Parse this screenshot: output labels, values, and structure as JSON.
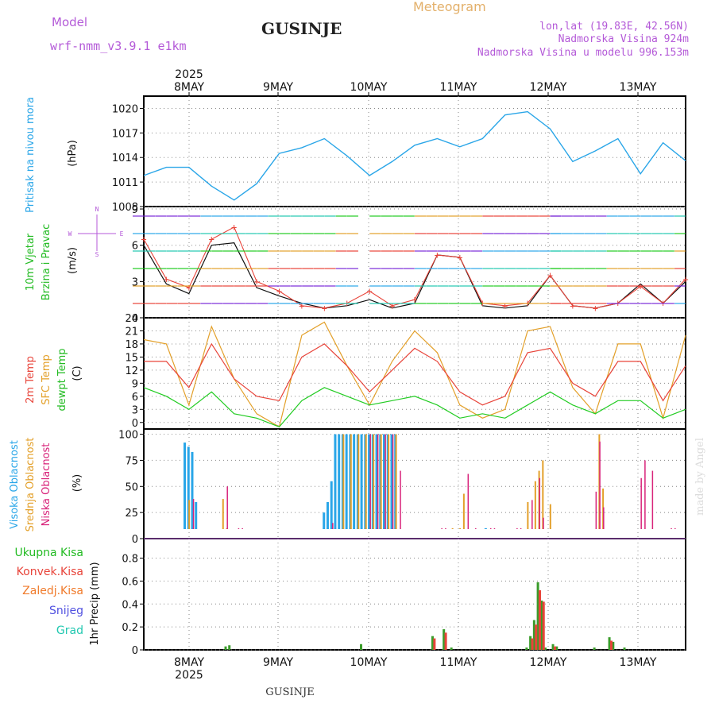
{
  "header": {
    "model_label": "Model",
    "model_name": "wrf-nmm_v3.9.1 e1km",
    "station": "GUSINJE",
    "app_title": "Meteogram",
    "coords": "lon,lat (19.83E, 42.56N)",
    "elevation": "Nadmorska Visina 924m",
    "model_elevation": "Nadmorska Visina u modelu 996.153m"
  },
  "footer": {
    "station": "GUSINJE"
  },
  "watermark": "made by Angel",
  "colors": {
    "pressure": "#2aa6e8",
    "t2m": "#e8443a",
    "tsfc": "#e3a02a",
    "dewpt": "#22cc22",
    "high_cloud": "#2aa6e8",
    "mid_cloud": "#e3a02a",
    "low_cloud": "#d8237a",
    "total_rain": "#3a9c2a",
    "conv_rain": "#e8443a",
    "frozen_rain": "#f07a2a",
    "snow": "#5050e0",
    "hail": "#22c8b0",
    "purple_text": "#b45ad8",
    "grid": "#888888"
  },
  "chart_data": [
    {
      "type": "line",
      "panel": "pressure",
      "ylabel_left": "Pritisak na nivou mora",
      "unit": "(hPa)",
      "top_year": "2025",
      "top_dates": [
        "8MAY",
        "9MAY",
        "10MAY",
        "11MAY",
        "12MAY",
        "13MAY"
      ],
      "ylim": [
        1008,
        1021.5
      ],
      "yticks": [
        "1008",
        "1011",
        "1014",
        "1017",
        "1020"
      ],
      "x_hours": [
        0,
        6,
        12,
        18,
        24,
        30,
        36,
        42,
        48,
        54,
        60,
        66,
        72,
        78,
        84,
        90,
        96,
        102,
        108,
        114,
        120,
        126,
        132,
        138,
        144
      ],
      "series": [
        {
          "values": [
            1011.8,
            1012.8,
            1012.8,
            1010.5,
            1008.8,
            1010.8,
            1014.5,
            1015.2,
            1016.3,
            1014.2,
            1011.8,
            1013.5,
            1015.5,
            1016.3,
            1015.3,
            1016.3,
            1019.2,
            1019.6,
            1017.5,
            1013.5,
            1014.8,
            1016.3,
            1012.0,
            1015.8,
            1013.6
          ]
        }
      ]
    },
    {
      "type": "line",
      "panel": "wind",
      "ylabel_left": [
        "10m Vjetar",
        "Brzina i Pravac"
      ],
      "unit": "(m/s)",
      "compass": [
        "N",
        "W",
        "E",
        "S"
      ],
      "ylim": [
        0,
        9.2
      ],
      "yticks": [
        "0",
        "3",
        "6",
        "9"
      ],
      "x_hours": [
        0,
        6,
        12,
        18,
        24,
        30,
        36,
        42,
        48,
        54,
        60,
        66,
        72,
        78,
        84,
        90,
        96,
        102,
        108,
        114,
        120,
        126,
        132,
        138,
        144
      ],
      "series": [
        {
          "name": "speed",
          "values": [
            6.0,
            2.8,
            2.0,
            6.0,
            6.2,
            2.5,
            1.8,
            1.2,
            0.8,
            1.0,
            1.5,
            0.8,
            1.2,
            5.2,
            5.0,
            1.0,
            0.8,
            1.0,
            3.5,
            1.0,
            0.8,
            1.2,
            2.8,
            1.2,
            3.0
          ]
        },
        {
          "name": "gust",
          "values": [
            6.5,
            3.2,
            2.5,
            6.5,
            7.5,
            3.0,
            2.2,
            1.0,
            0.8,
            1.2,
            2.2,
            1.0,
            1.5,
            5.2,
            5.0,
            1.2,
            1.0,
            1.2,
            3.5,
            1.0,
            0.8,
            1.2,
            2.6,
            1.2,
            3.2
          ]
        }
      ]
    },
    {
      "type": "line",
      "panel": "temperature",
      "ylabel_left": [
        "2m Temp",
        "SFC Temp",
        "dewpt Temp"
      ],
      "unit": "(C)",
      "ylim": [
        -1.5,
        24
      ],
      "yticks": [
        "0",
        "3",
        "6",
        "9",
        "12",
        "15",
        "18",
        "21",
        "24"
      ],
      "x_hours": [
        0,
        6,
        12,
        18,
        24,
        30,
        36,
        42,
        48,
        54,
        60,
        66,
        72,
        78,
        84,
        90,
        96,
        102,
        108,
        114,
        120,
        126,
        132,
        138,
        144
      ],
      "series": [
        {
          "name": "2m Temp",
          "values": [
            14,
            14,
            8,
            18,
            10,
            6,
            5,
            15,
            18,
            13,
            7,
            12,
            17,
            14,
            7,
            4,
            6,
            16,
            17,
            9,
            6,
            14,
            14,
            5,
            13
          ]
        },
        {
          "name": "SFC Temp",
          "values": [
            19,
            18,
            4,
            22,
            10,
            2,
            -1,
            20,
            23,
            13,
            4,
            14,
            21,
            16,
            4,
            1,
            3,
            21,
            22,
            8,
            2,
            18,
            18,
            1,
            20
          ]
        },
        {
          "name": "dewpt Temp",
          "values": [
            8,
            6,
            3,
            7,
            2,
            1,
            -1,
            5,
            8,
            6,
            4,
            5,
            6,
            4,
            1,
            2,
            1,
            4,
            7,
            4,
            2,
            5,
            5,
            1,
            3
          ]
        }
      ]
    },
    {
      "type": "bar",
      "panel": "clouds",
      "ylabel_left": [
        "Visoka Oblacnost",
        "Srednja Oblacnost",
        "Niska Oblacnost"
      ],
      "unit": "(%)",
      "ylim": [
        0,
        105
      ],
      "yticks": [
        "0",
        "25",
        "50",
        "75",
        "100"
      ],
      "series": [
        {
          "name": "Visoka Oblacnost",
          "bars": [
            [
              11,
              92
            ],
            [
              12,
              88
            ],
            [
              13,
              83
            ],
            [
              14,
              35
            ],
            [
              48,
              25
            ],
            [
              49,
              35
            ],
            [
              50,
              55
            ],
            [
              51,
              100
            ],
            [
              52,
              100
            ],
            [
              53,
              100
            ],
            [
              54,
              100
            ],
            [
              55,
              100
            ],
            [
              56,
              100
            ],
            [
              57,
              100
            ],
            [
              58,
              100
            ],
            [
              59,
              100
            ],
            [
              60,
              100
            ],
            [
              61,
              100
            ],
            [
              62,
              100
            ],
            [
              63,
              100
            ],
            [
              64,
              100
            ],
            [
              65,
              100
            ],
            [
              66,
              100
            ],
            [
              67,
              100
            ],
            [
              91,
              10
            ],
            [
              104,
              5
            ],
            [
              105,
              5
            ],
            [
              106,
              5
            ]
          ]
        },
        {
          "name": "Srednja Oblacnost",
          "bars": [
            [
              12,
              37
            ],
            [
              21,
              38
            ],
            [
              22,
              10
            ],
            [
              23,
              5
            ],
            [
              24,
              5
            ],
            [
              53,
              100
            ],
            [
              55,
              100
            ],
            [
              57,
              100
            ],
            [
              59,
              100
            ],
            [
              61,
              100
            ],
            [
              63,
              100
            ],
            [
              65,
              100
            ],
            [
              67,
              100
            ],
            [
              82,
              10
            ],
            [
              84,
              10
            ],
            [
              85,
              43
            ],
            [
              101,
              5
            ],
            [
              102,
              35
            ],
            [
              104,
              55
            ],
            [
              105,
              65
            ],
            [
              106,
              75
            ],
            [
              108,
              33
            ],
            [
              121,
              100
            ],
            [
              122,
              48
            ],
            [
              123,
              8
            ]
          ]
        },
        {
          "name": "Niska Oblacnost",
          "bars": [
            [
              13,
              38
            ],
            [
              22,
              50
            ],
            [
              25,
              10
            ],
            [
              26,
              10
            ],
            [
              50,
              15
            ],
            [
              60,
              100
            ],
            [
              62,
              100
            ],
            [
              64,
              100
            ],
            [
              66,
              100
            ],
            [
              68,
              65
            ],
            [
              79,
              10
            ],
            [
              80,
              10
            ],
            [
              86,
              62
            ],
            [
              88,
              10
            ],
            [
              92,
              10
            ],
            [
              93,
              10
            ],
            [
              99,
              10
            ],
            [
              100,
              10
            ],
            [
              103,
              37
            ],
            [
              105,
              58
            ],
            [
              106,
              20
            ],
            [
              120,
              45
            ],
            [
              121,
              93
            ],
            [
              122,
              30
            ],
            [
              132,
              58
            ],
            [
              133,
              75
            ],
            [
              135,
              65
            ],
            [
              140,
              10
            ],
            [
              141,
              10
            ]
          ]
        }
      ]
    },
    {
      "type": "bar",
      "panel": "precip",
      "ylabel_left": [
        "Ukupna Kisa",
        "Konvek.Kisa",
        "Zaledj.Kisa",
        "Snijeg",
        "Grad"
      ],
      "unit": "1hr Precip (mm)",
      "ylim": [
        0,
        0.97
      ],
      "yticks": [
        "0",
        "0.2",
        "0.4",
        "0.6",
        "0.8"
      ],
      "bottom_dates": [
        "8MAY",
        "9MAY",
        "10MAY",
        "11MAY",
        "12MAY",
        "13MAY"
      ],
      "bottom_year": "2025",
      "series": [
        {
          "name": "Ukupna Kisa",
          "bars": [
            [
              22,
              0.03
            ],
            [
              23,
              0.04
            ],
            [
              58,
              0.05
            ],
            [
              77,
              0.12
            ],
            [
              80,
              0.18
            ],
            [
              82,
              0.02
            ],
            [
              102,
              0.02
            ],
            [
              103,
              0.12
            ],
            [
              104,
              0.26
            ],
            [
              105,
              0.59
            ],
            [
              106,
              0.43
            ],
            [
              107,
              0.02
            ],
            [
              109,
              0.05
            ],
            [
              110,
              0.03
            ],
            [
              120,
              0.02
            ],
            [
              124,
              0.11
            ],
            [
              125,
              0.07
            ],
            [
              128,
              0.02
            ]
          ]
        },
        {
          "name": "Konvek.Kisa",
          "bars": [
            [
              77,
              0.1
            ],
            [
              80,
              0.15
            ],
            [
              103,
              0.1
            ],
            [
              104,
              0.22
            ],
            [
              105,
              0.52
            ],
            [
              106,
              0.42
            ],
            [
              109,
              0.03
            ],
            [
              124,
              0.08
            ]
          ]
        }
      ]
    }
  ]
}
